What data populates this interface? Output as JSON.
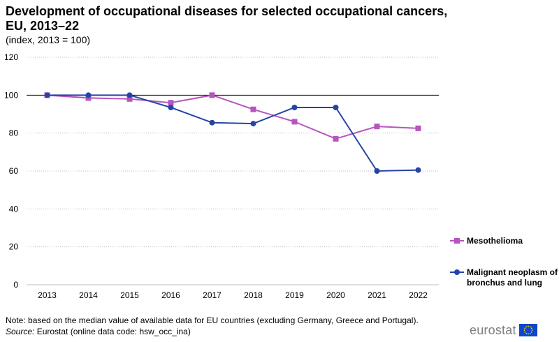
{
  "title": "Development of occupational diseases for selected occupational cancers, EU, 2013–22",
  "subtitle": "(index, 2013 = 100)",
  "note": "Note: based on the median value of available data for EU countries (excluding Germany, Greece and Portugal).",
  "source_label": "Source:",
  "source_text": " Eurostat (online data code: hsw_occ_ina)",
  "logo_text": "eurostat",
  "chart_data": {
    "type": "line",
    "title": "Development of occupational diseases for selected occupational cancers, EU, 2013–22",
    "subtitle": "(index, 2013 = 100)",
    "xlabel": "",
    "ylabel": "",
    "categories": [
      "2013",
      "2014",
      "2015",
      "2016",
      "2017",
      "2018",
      "2019",
      "2020",
      "2021",
      "2022"
    ],
    "ylim": [
      0,
      120
    ],
    "yticks": [
      0,
      20,
      40,
      60,
      80,
      100,
      120
    ],
    "grid": true,
    "legend_position": "right",
    "series": [
      {
        "name": "Mesothelioma",
        "color": "#b656bd",
        "marker": "square",
        "values": [
          100,
          98.5,
          98,
          96,
          100,
          92.5,
          86,
          77,
          83.5,
          82.5
        ]
      },
      {
        "name": "Malignant neoplasm of bronchus and lung",
        "color": "#2644a7",
        "marker": "circle",
        "values": [
          100,
          100,
          100,
          93.5,
          85.5,
          85,
          93.5,
          93.5,
          60,
          60.5
        ]
      }
    ]
  }
}
